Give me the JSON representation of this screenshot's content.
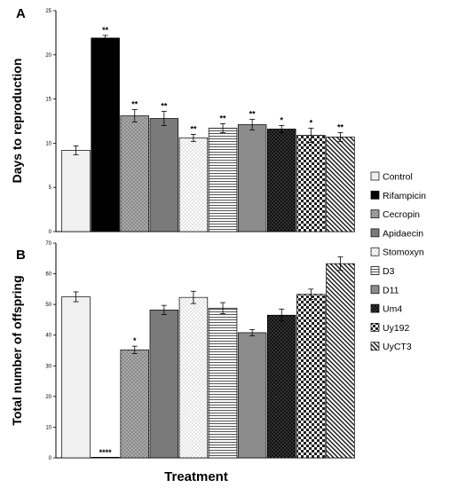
{
  "chart_data": [
    {
      "type": "bar",
      "panel": "A",
      "ylabel": "Days to reproduction",
      "xlabel": "",
      "ylim": [
        0,
        25
      ],
      "yticks": [
        0,
        5,
        10,
        15,
        20,
        25
      ],
      "categories": [
        "Control",
        "Rifampicin",
        "Cecropin",
        "Apidaecin",
        "Stomoxyn",
        "D3",
        "D11",
        "Um4",
        "Uy192",
        "UyCT3"
      ],
      "values": [
        9.2,
        21.9,
        13.1,
        12.8,
        10.6,
        11.7,
        12.1,
        11.6,
        10.9,
        10.7
      ],
      "errors": [
        0.5,
        0.3,
        0.7,
        0.8,
        0.4,
        0.5,
        0.6,
        0.4,
        0.8,
        0.5
      ],
      "significance": [
        "",
        "**",
        "**",
        "**",
        "**",
        "**",
        "**",
        "*",
        "*",
        "**"
      ]
    },
    {
      "type": "bar",
      "panel": "B",
      "ylabel": "Total number of offspring",
      "xlabel": "Treatment",
      "ylim": [
        0,
        70
      ],
      "yticks": [
        0,
        10,
        20,
        30,
        40,
        50,
        60,
        70
      ],
      "categories": [
        "Control",
        "Rifampicin",
        "Cecropin",
        "Apidaecin",
        "Stomoxyn",
        "D3",
        "D11",
        "Um4",
        "Uy192",
        "UyCT3"
      ],
      "values": [
        52.5,
        0,
        35.2,
        48.2,
        52.3,
        48.8,
        40.8,
        46.5,
        53.3,
        63.3
      ],
      "errors": [
        1.6,
        0,
        1.2,
        1.5,
        2.0,
        1.8,
        1.0,
        2.0,
        1.7,
        2.2
      ],
      "significance": [
        "",
        "****",
        "*",
        "",
        "",
        "",
        "",
        "",
        "",
        ""
      ]
    }
  ],
  "legend": {
    "placement": "right",
    "entries": [
      "Control",
      "Rifampicin",
      "Cecropin",
      "Apidaecin",
      "Stomoxyn",
      "D3",
      "D11",
      "Um4",
      "Uy192",
      "UyCT3"
    ]
  }
}
